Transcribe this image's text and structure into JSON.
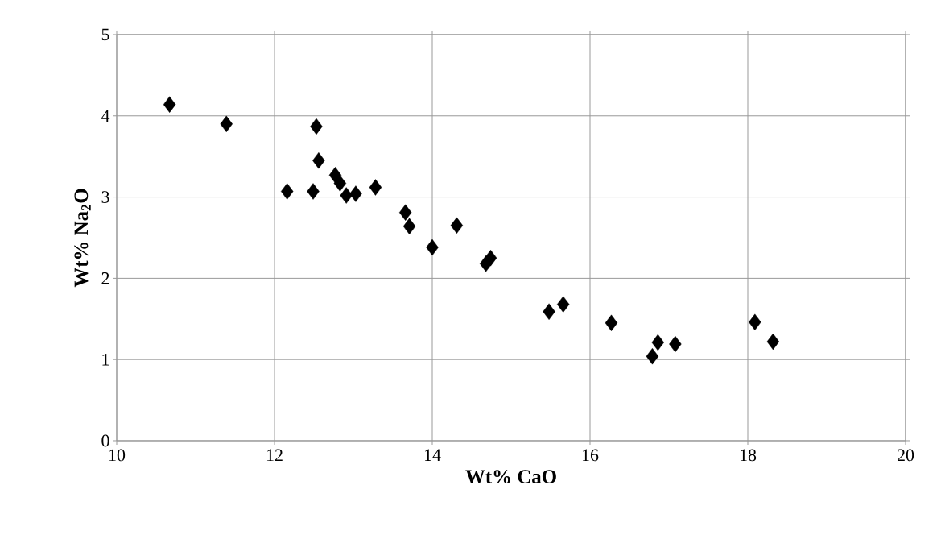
{
  "chart_data": {
    "type": "scatter",
    "xlabel": "Wt% CaO",
    "ylabel": "Wt% Na$_{2}$O",
    "x": [
      10.67,
      11.39,
      12.53,
      12.56,
      12.16,
      12.49,
      12.77,
      12.83,
      12.91,
      13.03,
      13.28,
      13.66,
      13.71,
      14.0,
      14.31,
      14.68,
      14.74,
      15.48,
      15.66,
      16.27,
      16.79,
      16.86,
      17.08,
      18.09,
      18.32
    ],
    "values": [
      4.14,
      3.9,
      3.87,
      3.45,
      3.07,
      3.07,
      3.27,
      3.17,
      3.02,
      3.04,
      3.12,
      2.81,
      2.64,
      2.38,
      2.65,
      2.18,
      2.25,
      1.59,
      1.68,
      1.45,
      1.04,
      1.21,
      1.19,
      1.46,
      1.22
    ],
    "color": "#000000",
    "marker": "diamond",
    "grid": true,
    "xlim": [
      10,
      20
    ],
    "ylim": [
      0,
      5
    ],
    "xticks": [
      10,
      12,
      14,
      16,
      18,
      20
    ],
    "yticks": [
      0,
      1,
      2,
      3,
      4,
      5
    ]
  }
}
